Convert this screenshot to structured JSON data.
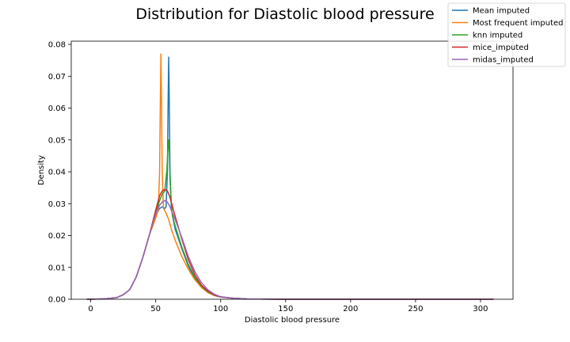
{
  "chart_data": {
    "type": "line",
    "title": "Distribution for Diastolic blood pressure",
    "xlabel": "Diastolic blood pressure",
    "ylabel": "Density",
    "xlim": [
      -15,
      325
    ],
    "ylim": [
      0,
      0.081
    ],
    "xticks": [
      0,
      50,
      100,
      150,
      200,
      250,
      300
    ],
    "yticks": [
      0.0,
      0.01,
      0.02,
      0.03,
      0.04,
      0.05,
      0.06,
      0.07,
      0.08
    ],
    "ytick_labels": [
      "0.00",
      "0.01",
      "0.02",
      "0.03",
      "0.04",
      "0.05",
      "0.06",
      "0.07",
      "0.08"
    ],
    "grid": false,
    "legend_position": "top-right",
    "series": [
      {
        "name": "Mean imputed",
        "color": "#1f77b4",
        "x": [
          -3,
          10,
          20,
          25,
          30,
          35,
          40,
          45,
          50,
          53,
          55,
          57,
          58,
          59,
          59.5,
          60,
          60.5,
          61,
          62,
          63,
          65,
          70,
          75,
          80,
          85,
          90,
          95,
          100,
          110,
          120,
          150,
          200,
          250,
          310
        ],
        "y": [
          0,
          0.0001,
          0.0005,
          0.0014,
          0.003,
          0.007,
          0.013,
          0.02,
          0.0263,
          0.0285,
          0.029,
          0.0285,
          0.029,
          0.04,
          0.06,
          0.076,
          0.06,
          0.04,
          0.029,
          0.026,
          0.022,
          0.016,
          0.0105,
          0.0065,
          0.0038,
          0.0022,
          0.0012,
          0.0007,
          0.0003,
          0.0001,
          0,
          0,
          0,
          0
        ]
      },
      {
        "name": "Most frequent imputed",
        "color": "#ff7f0e",
        "x": [
          -3,
          10,
          20,
          25,
          30,
          35,
          40,
          45,
          50,
          52,
          53,
          53.5,
          54,
          54.5,
          55,
          56,
          58,
          60,
          62,
          65,
          70,
          75,
          80,
          85,
          90,
          95,
          100,
          110,
          120,
          150,
          200,
          250,
          310
        ],
        "y": [
          0,
          0.0001,
          0.0005,
          0.0014,
          0.003,
          0.007,
          0.013,
          0.02,
          0.0255,
          0.028,
          0.04,
          0.06,
          0.077,
          0.06,
          0.04,
          0.0285,
          0.027,
          0.025,
          0.022,
          0.0185,
          0.0135,
          0.0095,
          0.0062,
          0.0038,
          0.0022,
          0.0012,
          0.0007,
          0.0003,
          0.0001,
          0,
          0,
          0,
          0
        ]
      },
      {
        "name": "knn imputed",
        "color": "#2ca02c",
        "x": [
          -3,
          10,
          20,
          25,
          30,
          35,
          40,
          45,
          50,
          53,
          55,
          57,
          58.5,
          59.5,
          60,
          60.5,
          61,
          62,
          63,
          65,
          70,
          75,
          80,
          85,
          90,
          95,
          100,
          110,
          120,
          150,
          200,
          250,
          310
        ],
        "y": [
          0,
          0.0001,
          0.0005,
          0.0014,
          0.003,
          0.007,
          0.013,
          0.02,
          0.027,
          0.031,
          0.033,
          0.034,
          0.04,
          0.048,
          0.05,
          0.046,
          0.038,
          0.03,
          0.026,
          0.023,
          0.0165,
          0.011,
          0.007,
          0.0042,
          0.0024,
          0.0013,
          0.0007,
          0.0003,
          0.0001,
          0,
          0,
          0,
          0
        ]
      },
      {
        "name": "mice_imputed",
        "color": "#d62728",
        "x": [
          -3,
          10,
          20,
          25,
          30,
          35,
          40,
          45,
          50,
          53,
          55,
          57,
          59,
          61,
          63,
          65,
          70,
          75,
          80,
          85,
          90,
          95,
          100,
          110,
          120,
          150,
          200,
          250,
          310
        ],
        "y": [
          0,
          0.0001,
          0.0005,
          0.0014,
          0.003,
          0.007,
          0.013,
          0.02,
          0.028,
          0.0325,
          0.034,
          0.0345,
          0.034,
          0.032,
          0.029,
          0.026,
          0.019,
          0.0125,
          0.0078,
          0.0045,
          0.0026,
          0.0014,
          0.0007,
          0.0003,
          0.0001,
          0,
          0,
          0,
          0
        ]
      },
      {
        "name": "midas_imputed",
        "color": "#9467bd",
        "x": [
          -3,
          10,
          20,
          25,
          30,
          35,
          40,
          45,
          50,
          53,
          55,
          57,
          59,
          61,
          63,
          65,
          70,
          75,
          80,
          85,
          90,
          95,
          100,
          110,
          120,
          150,
          200,
          250,
          310
        ],
        "y": [
          0,
          0.0001,
          0.0005,
          0.0014,
          0.003,
          0.007,
          0.013,
          0.02,
          0.027,
          0.0295,
          0.0305,
          0.031,
          0.0305,
          0.029,
          0.027,
          0.025,
          0.0195,
          0.0135,
          0.0088,
          0.0053,
          0.003,
          0.0016,
          0.0008,
          0.0003,
          0.0001,
          0,
          0,
          0,
          0
        ]
      }
    ]
  }
}
